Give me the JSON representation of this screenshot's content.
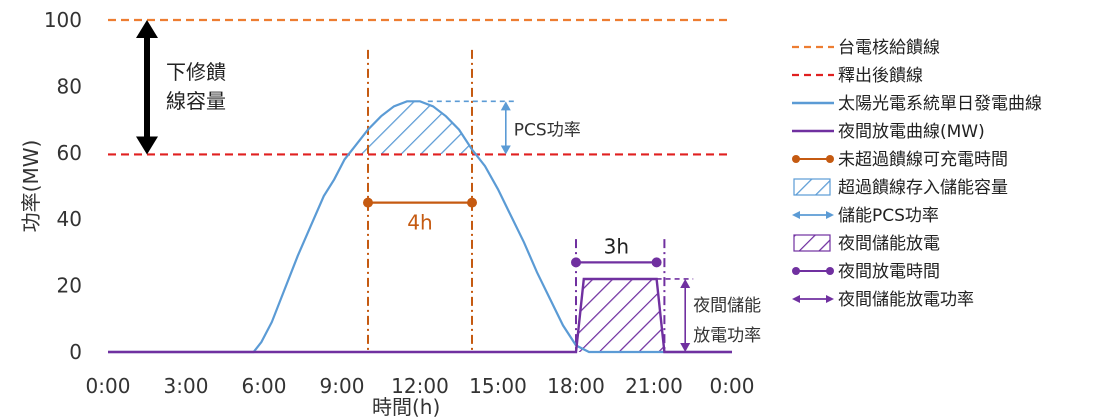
{
  "chart_data": {
    "type": "line",
    "xlabel": "時間(h)",
    "ylabel": "功率(MW)",
    "x_ticks": [
      "0:00",
      "3:00",
      "6:00",
      "9:00",
      "12:00",
      "15:00",
      "18:00",
      "21:00",
      "0:00"
    ],
    "y_ticks": [
      0,
      20,
      40,
      60,
      80,
      100
    ],
    "xlim": [
      0,
      24
    ],
    "ylim": [
      0,
      100
    ],
    "grid": false,
    "legend_position": "right",
    "hlines": [
      {
        "name": "台電核給饋線",
        "y": 100,
        "color": "#ED7D31",
        "style": "dashed"
      },
      {
        "name": "釋出後饋線",
        "y": 59.5,
        "color": "#E02020",
        "style": "dashed"
      }
    ],
    "series": [
      {
        "name": "太陽光電系統單日發電曲線",
        "color": "#5B9BD5",
        "x": [
          0,
          5.6,
          5.9,
          6.3,
          6.8,
          7.3,
          7.8,
          8.3,
          8.7,
          9.1,
          9.5,
          10.0,
          10.5,
          11.0,
          11.5,
          12.0,
          12.5,
          13.0,
          13.5,
          14.0,
          14.5,
          15.0,
          15.5,
          16.0,
          16.5,
          17.0,
          17.5,
          18.0,
          18.5,
          19.0,
          24
        ],
        "y": [
          0,
          0,
          3,
          9,
          19,
          29,
          38,
          47,
          52,
          58,
          62,
          67,
          71,
          74,
          75.5,
          75.5,
          74,
          71,
          67,
          61,
          56,
          49,
          41,
          33,
          24,
          16,
          8,
          2,
          0,
          0,
          0
        ]
      },
      {
        "name": "夜間放電曲線(MW)",
        "color": "#7030A0",
        "x": [
          0,
          18.0,
          18.3,
          21.1,
          21.4,
          24
        ],
        "y": [
          0,
          0,
          22,
          22,
          0,
          0
        ]
      }
    ],
    "vlines": [
      {
        "x": 10.0,
        "color": "#C55A11",
        "style": "dashdot"
      },
      {
        "x": 14.0,
        "color": "#C55A11",
        "style": "dashdot"
      },
      {
        "x": 18.0,
        "color": "#7030A0",
        "style": "dashdot"
      },
      {
        "x": 21.4,
        "color": "#7030A0",
        "style": "dashdot"
      }
    ],
    "annotations": {
      "feeder_reduction": {
        "text_line1": "下修饋",
        "text_line2": "線容量",
        "x": 1.5,
        "y_from": 100,
        "y_to": 59.5
      },
      "charge_time": {
        "text": "4h",
        "x_from": 10.0,
        "x_to": 14.0,
        "y": 45,
        "color": "#C55A11"
      },
      "pcs_power": {
        "text": "PCS功率",
        "x": 15.3,
        "y_from": 75.5,
        "y_to": 59.5,
        "color": "#5B9BD5"
      },
      "discharge_time": {
        "text": "3h",
        "x_from": 18.0,
        "x_to": 21.1,
        "y": 27,
        "color": "#7030A0"
      },
      "discharge_power": {
        "text_line1": "夜間儲能",
        "text_line2": "放電功率",
        "x": 22.2,
        "y_from": 22,
        "y_to": 0,
        "color": "#7030A0"
      }
    },
    "legend": [
      {
        "label": "台電核給饋線",
        "kind": "dash",
        "color": "#ED7D31"
      },
      {
        "label": "釋出後饋線",
        "kind": "dash",
        "color": "#E02020"
      },
      {
        "label": "太陽光電系統單日發電曲線",
        "kind": "line",
        "color": "#5B9BD5"
      },
      {
        "label": "夜間放電曲線(MW)",
        "kind": "line",
        "color": "#7030A0"
      },
      {
        "label": "未超過饋線可充電時間",
        "kind": "dots",
        "color": "#C55A11"
      },
      {
        "label": "超過饋線存入儲能容量",
        "kind": "hatch",
        "color": "#5B9BD5"
      },
      {
        "label": "儲能PCS功率",
        "kind": "arrow",
        "color": "#5B9BD5"
      },
      {
        "label": "夜間儲能放電",
        "kind": "hatch",
        "color": "#7030A0"
      },
      {
        "label": "夜間放電時間",
        "kind": "dots",
        "color": "#7030A0"
      },
      {
        "label": "夜間儲能放電功率",
        "kind": "arrow",
        "color": "#7030A0"
      }
    ]
  }
}
